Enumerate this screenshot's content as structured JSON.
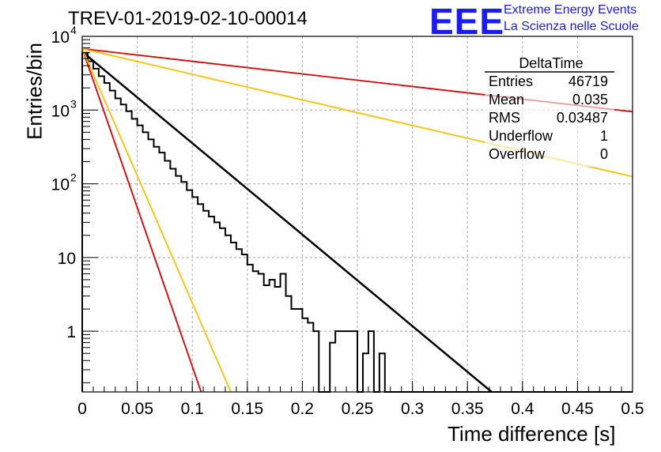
{
  "title": "TREV-01-2019-02-10-00014",
  "logo": {
    "mark": "EEE",
    "line1": "Extreme Energy Events",
    "line2": "La Scienza nelle Scuole"
  },
  "chart_data": {
    "type": "histogram",
    "xlabel": "Time difference [s]",
    "ylabel": "Entries/bin",
    "xlim": [
      0,
      0.5
    ],
    "ylim": [
      0.15,
      10000
    ],
    "yscale": "log",
    "grid": true,
    "x_ticks": [
      "0",
      "0.05",
      "0.1",
      "0.15",
      "0.2",
      "0.25",
      "0.3",
      "0.35",
      "0.4",
      "0.45",
      "0.5"
    ],
    "y_ticks": [
      {
        "value": 1,
        "label": "1"
      },
      {
        "value": 10,
        "label": "10"
      },
      {
        "value": 100,
        "label": "10",
        "exp": "2"
      },
      {
        "value": 1000,
        "label": "10",
        "exp": "3"
      },
      {
        "value": 10000,
        "label": "10",
        "exp": "4"
      }
    ],
    "bin_width": 0.005,
    "histogram_counts": [
      6000,
      4600,
      3650,
      2880,
      2330,
      1840,
      1440,
      1190,
      965,
      760,
      620,
      500,
      400,
      318,
      265,
      205,
      160,
      128,
      106,
      82,
      66,
      53,
      43,
      36,
      30,
      25,
      20,
      16,
      13,
      11,
      8,
      6.5,
      6,
      4.2,
      5,
      4,
      6,
      3,
      2,
      2,
      1.5,
      1.3,
      1,
      0,
      0,
      0.7,
      1,
      1,
      1,
      1,
      0,
      0.5,
      1,
      0,
      0.5,
      0,
      0,
      0,
      0,
      0,
      0,
      0,
      0,
      0,
      0,
      0,
      0,
      0,
      0,
      0,
      0,
      0,
      0,
      0,
      0,
      0,
      0,
      0,
      0,
      0,
      0,
      0,
      0,
      0,
      0,
      0,
      0,
      0,
      0,
      0,
      0,
      0,
      0,
      0,
      0,
      0,
      0,
      0,
      0,
      0
    ],
    "fits": [
      {
        "name": "black",
        "color": "#000000",
        "width": 2.5,
        "points": [
          [
            0,
            6200
          ],
          [
            0.372,
            0.15
          ]
        ]
      },
      {
        "name": "red-slow",
        "color": "#e00000",
        "width": 1.8,
        "points": [
          [
            0,
            6800
          ],
          [
            0.5,
            950
          ]
        ]
      },
      {
        "name": "yellow-slow",
        "color": "#ffc000",
        "width": 1.8,
        "points": [
          [
            0,
            6800
          ],
          [
            0.5,
            125
          ]
        ]
      },
      {
        "name": "red-fast",
        "color": "#e00000",
        "width": 1.8,
        "points": [
          [
            0,
            6800
          ],
          [
            0.108,
            0.15
          ]
        ]
      },
      {
        "name": "yellow-fast",
        "color": "#ffc000",
        "width": 1.8,
        "points": [
          [
            0,
            6800
          ],
          [
            0.135,
            0.15
          ]
        ]
      }
    ],
    "stats_box": {
      "name": "DeltaTime",
      "rows": [
        {
          "label": "Entries",
          "value": "46719"
        },
        {
          "label": "Mean",
          "value": "0.035"
        },
        {
          "label": "RMS",
          "value": "0.03487"
        },
        {
          "label": "Underflow",
          "value": "1"
        },
        {
          "label": "Overflow",
          "value": "0"
        }
      ]
    }
  }
}
